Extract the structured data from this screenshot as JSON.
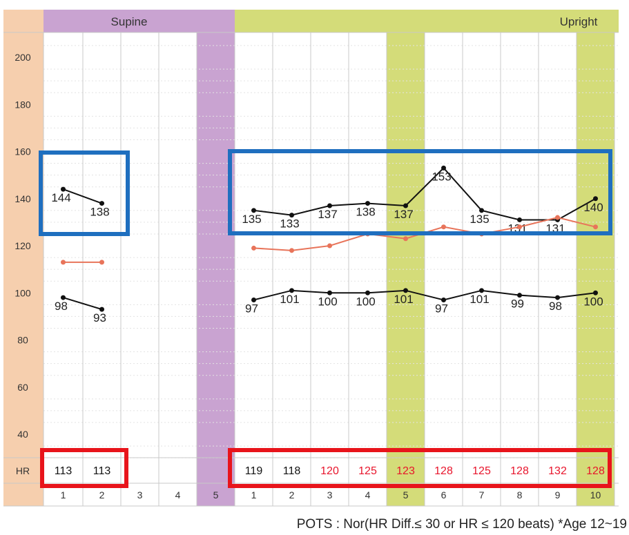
{
  "chart_data": {
    "type": "line",
    "title": "",
    "y_axis": {
      "ticks": [
        200,
        180,
        160,
        140,
        120,
        100,
        80,
        60,
        40
      ],
      "ylim": [
        30,
        210
      ]
    },
    "sections": [
      {
        "name": "supine",
        "label": "Supine",
        "columns": [
          "1",
          "2",
          "3",
          "4",
          "5"
        ],
        "highlight_columns": [
          "5"
        ],
        "color": "#c9a3d1"
      },
      {
        "name": "upright",
        "label": "Upright",
        "columns": [
          "1",
          "2",
          "3",
          "4",
          "5",
          "6",
          "7",
          "8",
          "9",
          "10"
        ],
        "highlight_columns": [
          "5",
          "10"
        ],
        "color": "#d4dc79"
      }
    ],
    "series": [
      {
        "name": "systolic",
        "color": "#111111",
        "supine_values": [
          144,
          138
        ],
        "supine_labels": [
          "144",
          "138"
        ],
        "upright_values": [
          135,
          133,
          137,
          138,
          137,
          153,
          135,
          131,
          131,
          140
        ],
        "upright_labels": [
          "135",
          "133",
          "137",
          "138",
          "137",
          "153",
          "135",
          "131",
          "131",
          "140"
        ]
      },
      {
        "name": "heart-rate",
        "color": "#e8745a",
        "supine_values": [
          113,
          113
        ],
        "upright_values": [
          119,
          118,
          120,
          125,
          123,
          128,
          125,
          128,
          132,
          128
        ]
      },
      {
        "name": "diastolic",
        "color": "#111111",
        "supine_values": [
          98,
          93
        ],
        "supine_labels": [
          "98",
          "93"
        ],
        "upright_values": [
          97,
          101,
          100,
          100,
          101,
          97,
          101,
          99,
          98,
          100
        ],
        "upright_labels": [
          "97",
          "101",
          "100",
          "100",
          "101",
          "97",
          "101",
          "99",
          "98",
          "100"
        ]
      }
    ],
    "hr_row": {
      "label": "HR",
      "supine": [
        "113",
        "113"
      ],
      "upright": [
        "119",
        "118",
        "120",
        "125",
        "123",
        "128",
        "125",
        "128",
        "132",
        "128"
      ],
      "upright_colors": [
        "#111111",
        "#111111",
        "#e8142b",
        "#e8142b",
        "#e8142b",
        "#e8142b",
        "#e8142b",
        "#e8142b",
        "#e8142b",
        "#e8142b"
      ]
    },
    "annotations": [
      {
        "name": "supine-bp-box",
        "color": "#1f6fbf",
        "covers": "supine systolic 144, 138"
      },
      {
        "name": "upright-bp-box",
        "color": "#1f6fbf",
        "covers": "upright systolic 135 to 140"
      },
      {
        "name": "supine-hr-box",
        "color": "#e8141b",
        "covers": "supine HR 113, 113"
      },
      {
        "name": "upright-hr-box",
        "color": "#e8141b",
        "covers": "upright HR 119 to 128"
      }
    ],
    "footnote": "POTS : Nor(HR Diff.≤ 30 or HR ≤ 120 beats) *Age 12~19"
  },
  "colors": {
    "axis_bg": "#f6cfae",
    "grid": "#c8c8c8",
    "dotted": "#e3e3e3",
    "supine": "#c9a3d1",
    "upright": "#d4dc79"
  }
}
